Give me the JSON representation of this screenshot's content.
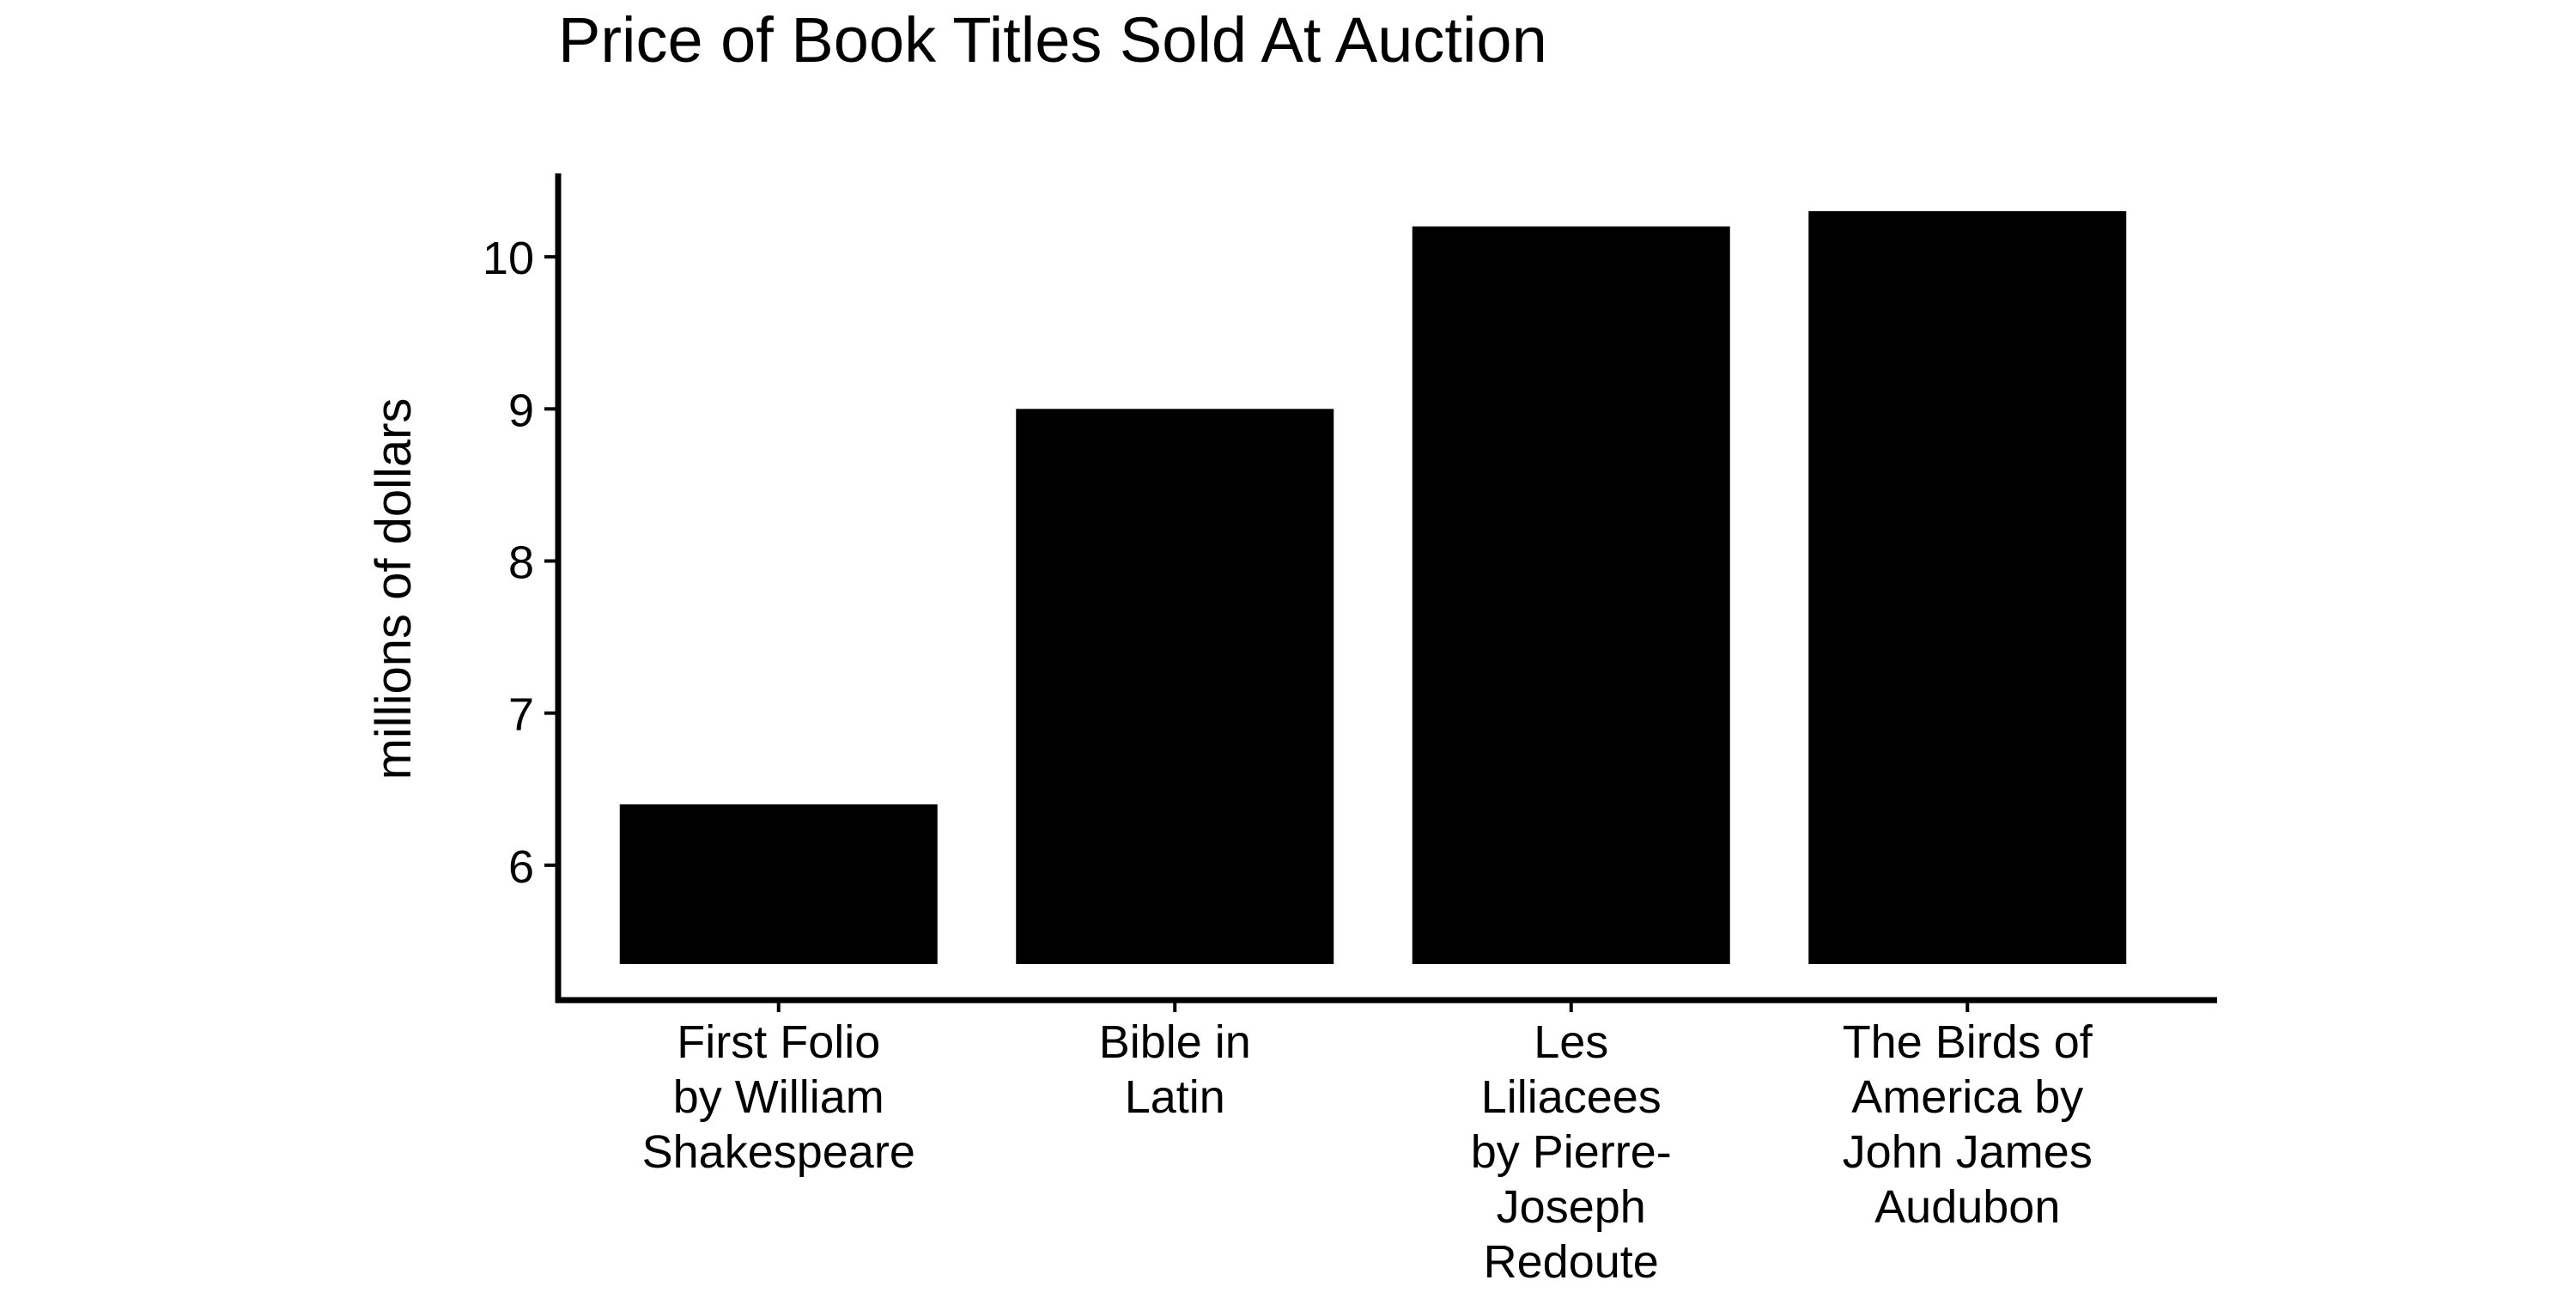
{
  "chart_data": {
    "type": "bar",
    "title": "Price of Book Titles Sold At Auction",
    "xlabel": "",
    "ylabel": "millions of dollars",
    "categories": [
      [
        "First Folio",
        "by William",
        "Shakespeare"
      ],
      [
        "Bible in",
        "Latin"
      ],
      [
        "Les",
        "Liliacees",
        "by Pierre-",
        "Joseph",
        "Redoute"
      ],
      [
        "The Birds of",
        "America by",
        "John James",
        "Audubon"
      ]
    ],
    "values": [
      6.4,
      9.0,
      10.2,
      10.3
    ],
    "ylim": [
      5.35,
      10.3
    ],
    "yticks": [
      "6",
      "7",
      "8",
      "9",
      "10"
    ],
    "grid": false,
    "legend": "none",
    "colors": {
      "bar": "#000000",
      "axis": "#000000",
      "background": "#ffffff"
    }
  }
}
